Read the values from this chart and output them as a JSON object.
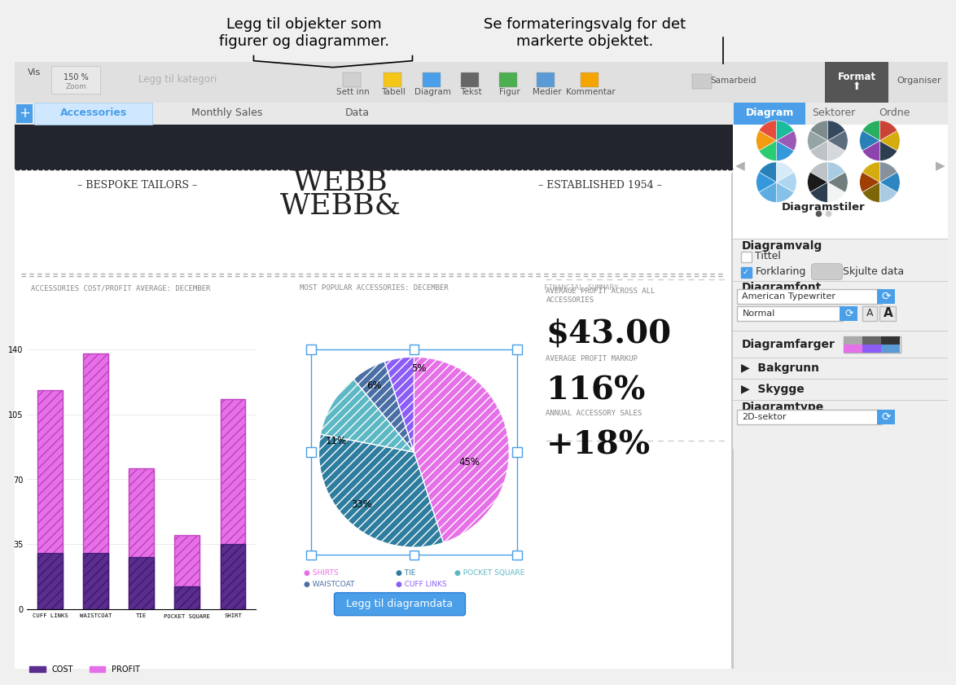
{
  "title_text1": "Legg til objekter som",
  "title_text2": "figurer og diagrammer.",
  "title_text3": "Se formateringsvalg for det",
  "title_text4": "markerte objektet.",
  "tab_items": [
    "Accessories",
    "Monthly Sales",
    "Data"
  ],
  "right_tabs": [
    "Diagram",
    "Sektorer",
    "Ordne"
  ],
  "bg_color": "#f0f0f0",
  "header_text_bespoke": "– BESPOKE TAILORS –",
  "header_text_established": "– ESTABLISHED 1954 –",
  "chart1_title": "ACCESSORIES COST/PROFIT AVERAGE: DECEMBER",
  "chart2_title": "MOST POPULAR ACCESSORIES: DECEMBER",
  "chart3_title": "FINANCIAL SUMMARY",
  "bar_categories": [
    "CUFF LINKS",
    "WAISTCOAT",
    "TIE",
    "POCKET SQUARE",
    "SHIRT"
  ],
  "bar_cost": [
    30,
    30,
    28,
    12,
    35
  ],
  "bar_profit": [
    88,
    108,
    48,
    28,
    78
  ],
  "bar_yticks": [
    0,
    35,
    70,
    105,
    140
  ],
  "bar_cost_color": "#5b2d8e",
  "bar_profit_color": "#e570e7",
  "pie_values": [
    45,
    33,
    11,
    6,
    5
  ],
  "pie_labels": [
    "45%",
    "33%",
    "11%",
    "6%",
    "5%"
  ],
  "pie_colors": [
    "#e570e7",
    "#2e7d9e",
    "#5cb8c4",
    "#4a6fa5",
    "#8b5cf6"
  ],
  "pie_legend_items": [
    "SHIRTS",
    "TIE",
    "POCKET SQUARE",
    "WAISTCOAT",
    "CUFF LINKS"
  ],
  "financial_label1": "AVERAGE PROFIT ACROSS ALL\nACCESSORIES",
  "financial_value1": "$43.00",
  "financial_label2": "AVERAGE PROFIT MARKUP",
  "financial_value2": "116%",
  "financial_label3": "ANNUAL ACCESSORY SALES",
  "financial_value3": "+18%",
  "diagramstiler": "Diagramstiler",
  "diagramvalg": "Diagramvalg",
  "tittel_label": "Tittel",
  "forklaring_label": "Forklaring",
  "skjulte_data_label": "Skjulte data",
  "diagramfont_label": "Diagramfont",
  "font_name": "American Typewriter",
  "font_style": "Normal",
  "diagramfarger_label": "Diagramfarger",
  "bakgrunn_label": "Bakgrunn",
  "skygge_label": "Skygge",
  "diagramtype_label": "Diagramtype",
  "diagramtype_val": "2D-sektor",
  "btn_text": "Legg til diagramdata",
  "btn_color": "#4a9fe8",
  "tab_blue": "#4a9fe8",
  "style_pie1_colors": [
    "#e74c3c",
    "#f39c12",
    "#2ecc71",
    "#3498db",
    "#9b59b6",
    "#1abc9c"
  ],
  "style_pie2_colors": [
    "#7f8c8d",
    "#95a5a6",
    "#bdc3c7",
    "#d5d8dc",
    "#5d6d7e",
    "#34495e"
  ],
  "style_pie3_colors": [
    "#27ae60",
    "#2980b9",
    "#8e44ad",
    "#2c3e50",
    "#d4ac0d",
    "#cb4335"
  ],
  "style_pie4_colors": [
    "#2980b9",
    "#3498db",
    "#5dade2",
    "#85c1e9",
    "#aed6f1",
    "#d6eaf8"
  ],
  "style_pie5_colors": [
    "#bdc3c7",
    "#1a1a1a",
    "#2c3e50",
    "#f2f3f4",
    "#717d7e",
    "#a9cce3"
  ],
  "style_pie6_colors": [
    "#d4ac0d",
    "#a04000",
    "#7d6608",
    "#a9cce3",
    "#2e86c1",
    "#85929e"
  ],
  "diagramfarger_colors": [
    "#e570e7",
    "#8b5cf6",
    "#5b9bd5",
    "#aaa",
    "#555",
    "#333"
  ]
}
